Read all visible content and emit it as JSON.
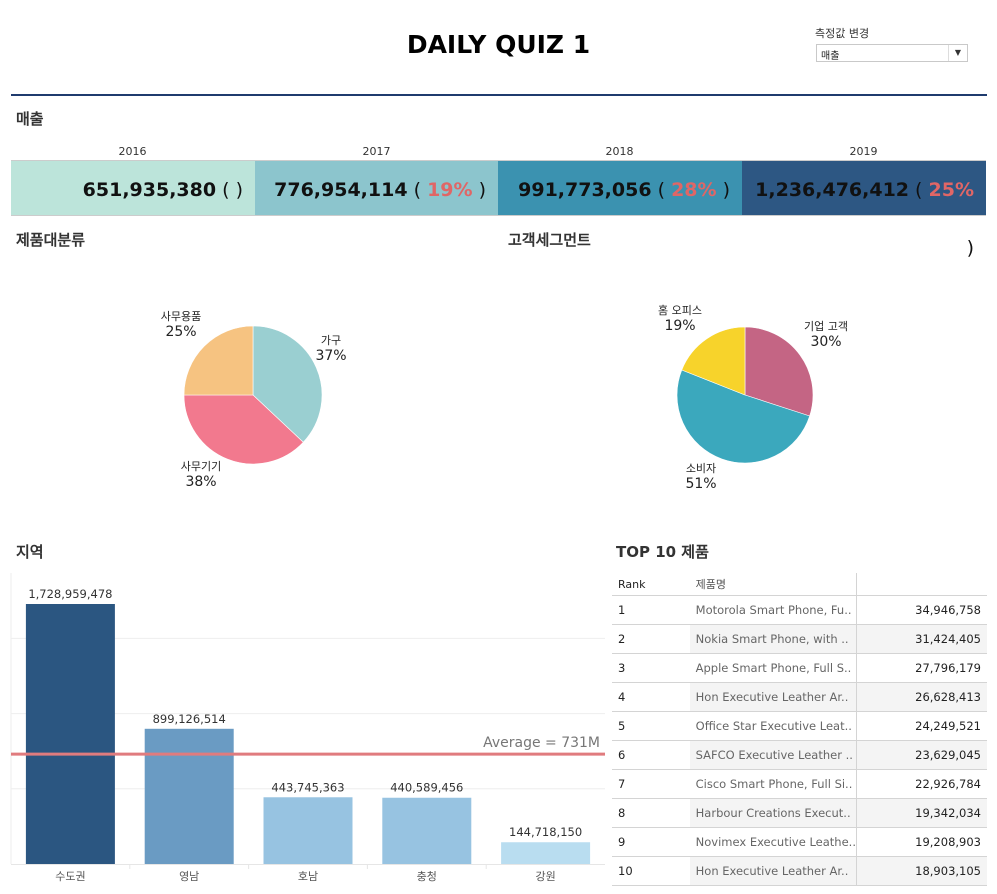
{
  "header": {
    "title": "DAILY QUIZ 1",
    "parameter": {
      "label": "측정값 변경",
      "selected": "매출"
    }
  },
  "kpi": {
    "title": "매출",
    "years": [
      {
        "year": "2016",
        "value": "651,935,380",
        "growth": "",
        "color": "#bce4da"
      },
      {
        "year": "2017",
        "value": "776,954,114",
        "growth": "19%",
        "color": "#8cc5cd"
      },
      {
        "year": "2018",
        "value": "991,773,056",
        "growth": "28%",
        "color": "#3b92b0"
      },
      {
        "year": "2019",
        "value": "1,236,476,412",
        "growth": "25%",
        "color": "#2d5783"
      }
    ],
    "growth_color": "#e06666"
  },
  "chart_data": [
    {
      "type": "pie",
      "title": "제품대분류",
      "slices": [
        {
          "label": "가구",
          "value": 37,
          "color": "#9acfd1"
        },
        {
          "label": "사무기기",
          "value": 38,
          "color": "#f2798e"
        },
        {
          "label": "사무용품",
          "value": 25,
          "color": "#f6c381"
        }
      ]
    },
    {
      "type": "pie",
      "title": "고객세그먼트",
      "slices": [
        {
          "label": "기업 고객",
          "value": 30,
          "color": "#c46584"
        },
        {
          "label": "소비자",
          "value": 51,
          "color": "#3ba8bd"
        },
        {
          "label": "홈 오피스",
          "value": 19,
          "color": "#f7d32b"
        }
      ]
    },
    {
      "type": "bar",
      "title": "지역",
      "categories": [
        "수도권",
        "영남",
        "호남",
        "충청",
        "강원"
      ],
      "values": [
        1728959478,
        899126514,
        443745363,
        440589456,
        144718150
      ],
      "value_labels": [
        "1,728,959,478",
        "899,126,514",
        "443,745,363",
        "440,589,456",
        "144,718,150"
      ],
      "colors": [
        "#2b5681",
        "#6a9bc3",
        "#97c3e1",
        "#97c3e1",
        "#b9ddf0"
      ],
      "ylim": [
        0,
        1800000000
      ],
      "gridlines": [
        500000000,
        1000000000,
        1500000000
      ],
      "reference_line": {
        "label": "Average = 731M",
        "value": 731000000,
        "color": "#e07b7e"
      },
      "xlabel": "",
      "ylabel": ""
    }
  ],
  "top10": {
    "title": "TOP 10 제품",
    "columns": [
      "Rank",
      "제품명",
      ""
    ],
    "rows": [
      {
        "rank": "1",
        "name": "Motorola Smart Phone, Fu..",
        "value": "34,946,758"
      },
      {
        "rank": "2",
        "name": "Nokia Smart Phone, with ..",
        "value": "31,424,405"
      },
      {
        "rank": "3",
        "name": "Apple Smart Phone, Full S..",
        "value": "27,796,179"
      },
      {
        "rank": "4",
        "name": "Hon Executive Leather Ar..",
        "value": "26,628,413"
      },
      {
        "rank": "5",
        "name": "Office Star Executive Leat..",
        "value": "24,249,521"
      },
      {
        "rank": "6",
        "name": "SAFCO Executive Leather ..",
        "value": "23,629,045"
      },
      {
        "rank": "7",
        "name": "Cisco Smart Phone, Full Si..",
        "value": "22,926,784"
      },
      {
        "rank": "8",
        "name": "Harbour Creations Execut..",
        "value": "19,342,034"
      },
      {
        "rank": "9",
        "name": "Novimex Executive Leathe..",
        "value": "19,208,903"
      },
      {
        "rank": "10",
        "name": "Hon Executive Leather Ar..",
        "value": "18,903,105"
      }
    ]
  }
}
